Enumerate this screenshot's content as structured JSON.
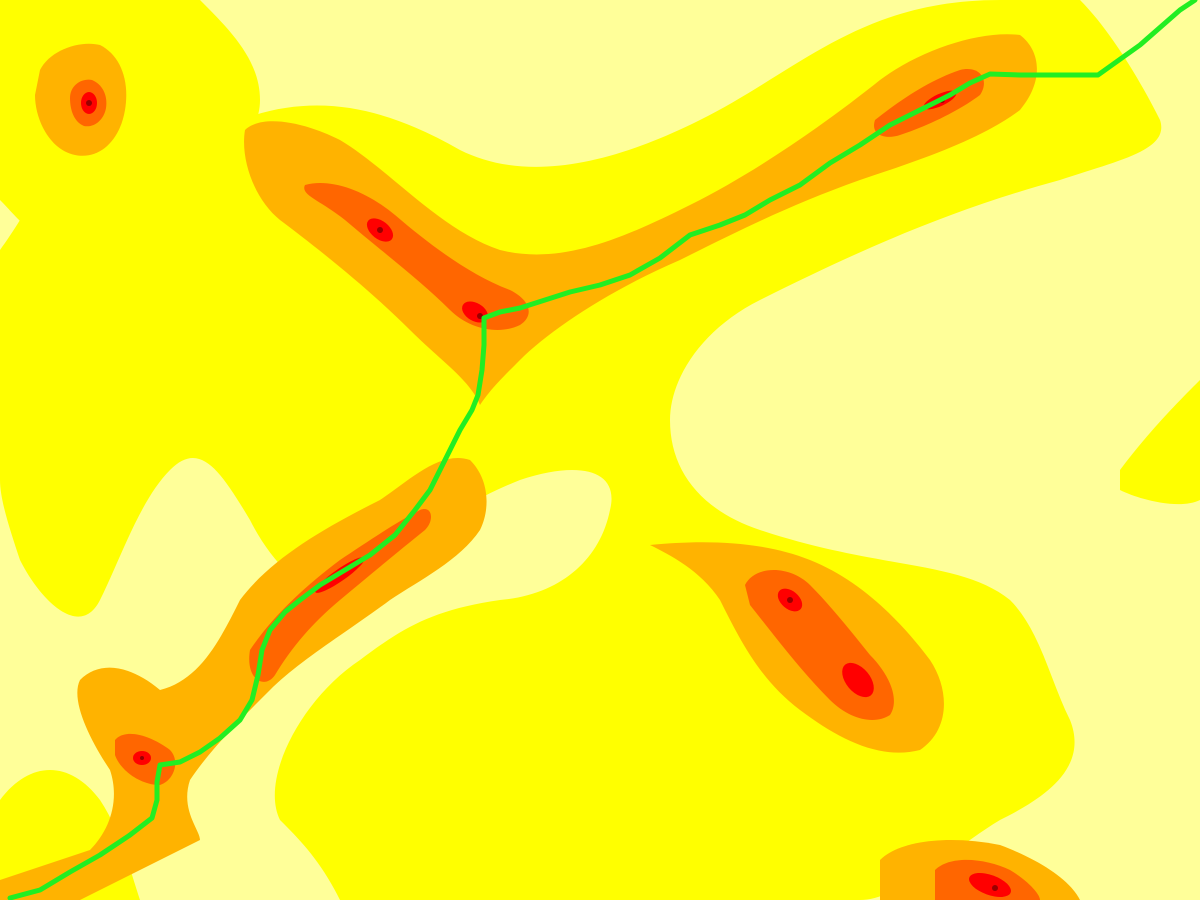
{
  "map": {
    "colors": {
      "level_0": "#ffff99",
      "level_1": "#ffff00",
      "level_2": "#ffb300",
      "level_3": "#ff6600",
      "level_4": "#ff0000",
      "level_5": "#990000",
      "path": "#22ee22"
    },
    "legend": []
  }
}
